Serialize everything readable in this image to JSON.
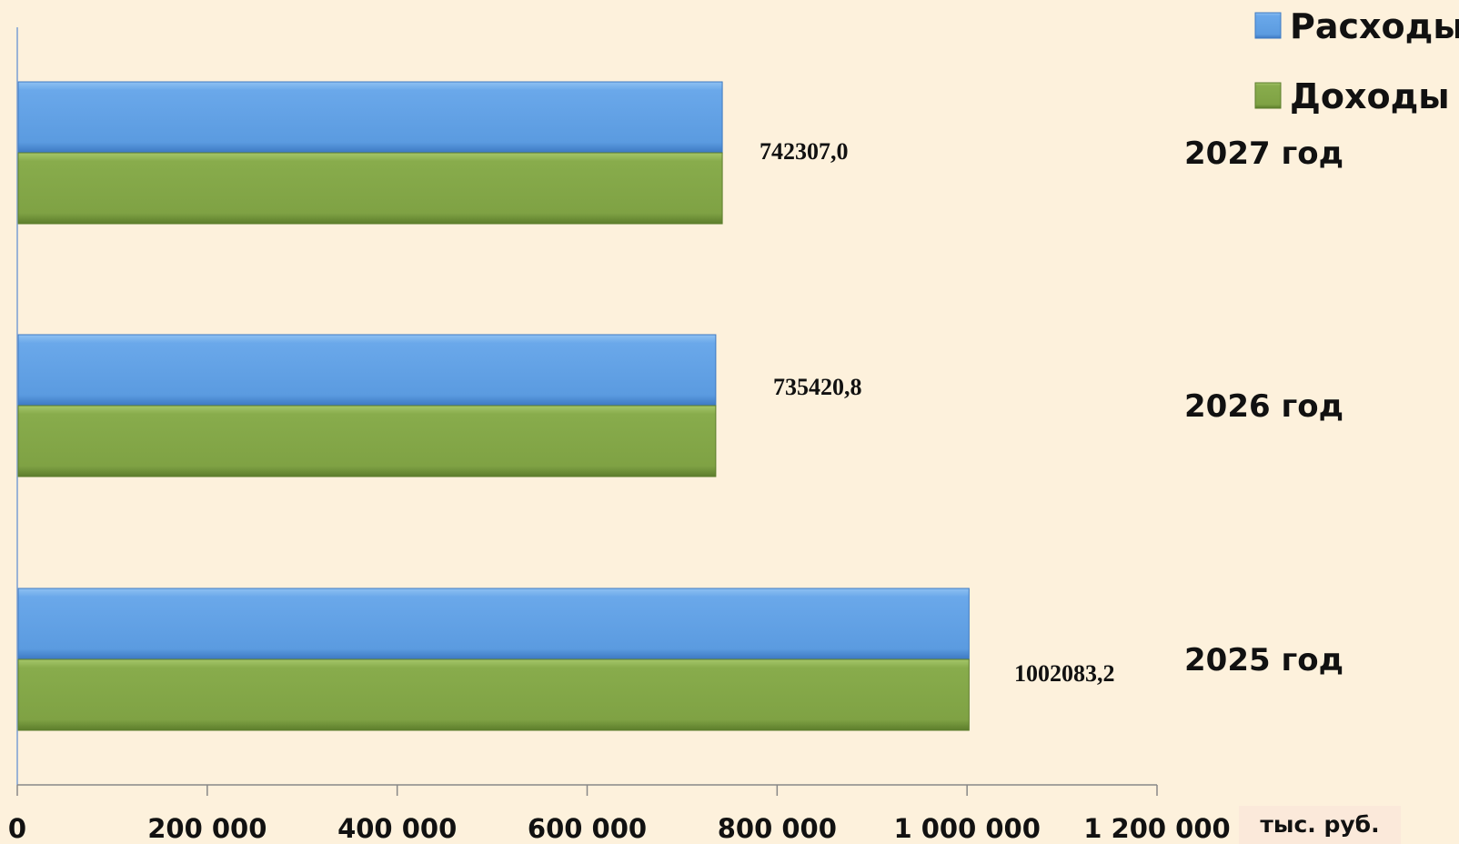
{
  "chart_data": {
    "type": "bar",
    "orientation": "horizontal",
    "categories": [
      "2025 год",
      "2026 год",
      "2027 год"
    ],
    "series": [
      {
        "name": "Расходы",
        "color": "#5b9be0",
        "values": [
          1002083.2,
          735420.8,
          742307.0
        ]
      },
      {
        "name": "Доходы",
        "color": "#7fa244",
        "values": [
          1002083.2,
          735420.8,
          742307.0
        ]
      }
    ],
    "data_labels": [
      "1002083,2",
      "735420,8",
      "742307,0"
    ],
    "xlim": [
      0,
      1200000
    ],
    "x_ticks": [
      0,
      200000,
      400000,
      600000,
      800000,
      1000000,
      1200000
    ],
    "x_tick_labels": [
      "0",
      "200 000",
      "400 000",
      "600 000",
      "800 000",
      "1 000 000",
      "1 200 000"
    ],
    "unit_label": "тыс. руб.",
    "legend_position": "top-right",
    "grid": false
  }
}
